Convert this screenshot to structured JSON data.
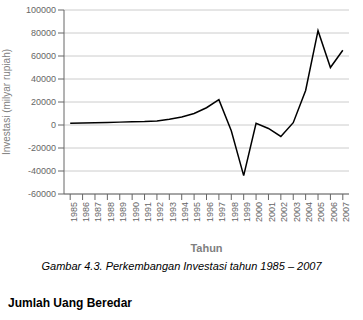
{
  "chart_data": {
    "type": "line",
    "x": [
      1985,
      1986,
      1987,
      1988,
      1989,
      1990,
      1991,
      1992,
      1993,
      1994,
      1995,
      1996,
      1997,
      1998,
      1999,
      2000,
      2001,
      2002,
      2003,
      2004,
      2005,
      2006,
      2007
    ],
    "values": [
      1500,
      1800,
      2000,
      2200,
      2500,
      2800,
      3000,
      3500,
      5000,
      7000,
      10000,
      15000,
      22000,
      -5000,
      -44000,
      1500,
      -3000,
      -10000,
      2000,
      30000,
      82000,
      50000,
      65000
    ],
    "ylabel": "Investasi (milyar rupiah)",
    "xlabel": "Tahun",
    "caption": "Gambar 4.3. Perkembangan Investasi tahun 1985 – 2007",
    "footer": "Jumlah Uang Beredar",
    "xlim": [
      1984.5,
      2007.5
    ],
    "xticks": [
      1985,
      1986,
      1987,
      1988,
      1989,
      1990,
      1991,
      1992,
      1993,
      1994,
      1995,
      1996,
      1997,
      1998,
      1999,
      2000,
      2001,
      2002,
      2003,
      2004,
      2005,
      2006,
      2007
    ],
    "ylim": [
      -60000,
      100000
    ],
    "yticks": [
      -60000,
      -40000,
      -20000,
      0,
      20000,
      40000,
      60000,
      80000,
      100000
    ],
    "color": "#000000",
    "grid": "y"
  }
}
